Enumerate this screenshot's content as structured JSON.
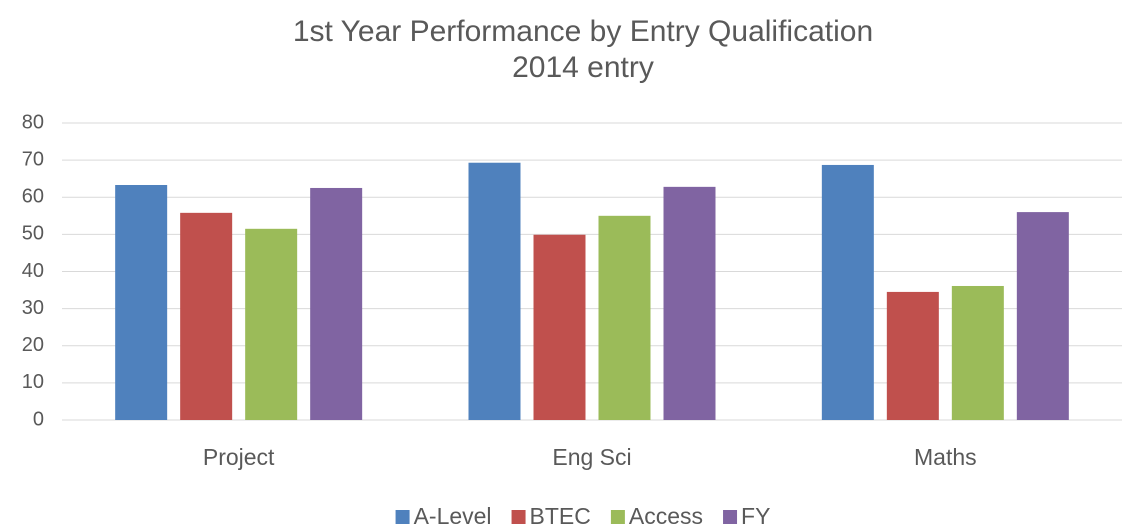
{
  "chart_data": {
    "type": "bar",
    "title": "1st Year Performance by Entry Qualification",
    "subtitle": "2014 entry",
    "categories": [
      "Project",
      "Eng Sci",
      "Maths"
    ],
    "series": [
      {
        "name": "A-Level",
        "color": "#4f81bd",
        "values": [
          63.3,
          69.3,
          68.7
        ]
      },
      {
        "name": "BTEC",
        "color": "#c0504d",
        "values": [
          55.8,
          49.9,
          34.5
        ]
      },
      {
        "name": "Access",
        "color": "#9bbb59",
        "values": [
          51.5,
          55,
          36.1
        ]
      },
      {
        "name": "FY",
        "color": "#8064a2",
        "values": [
          62.5,
          62.8,
          56
        ]
      }
    ],
    "ylim": [
      0,
      80
    ],
    "yticks": [
      0,
      10,
      20,
      30,
      40,
      50,
      60,
      70,
      80
    ],
    "grid": true,
    "legend": "bottom"
  }
}
